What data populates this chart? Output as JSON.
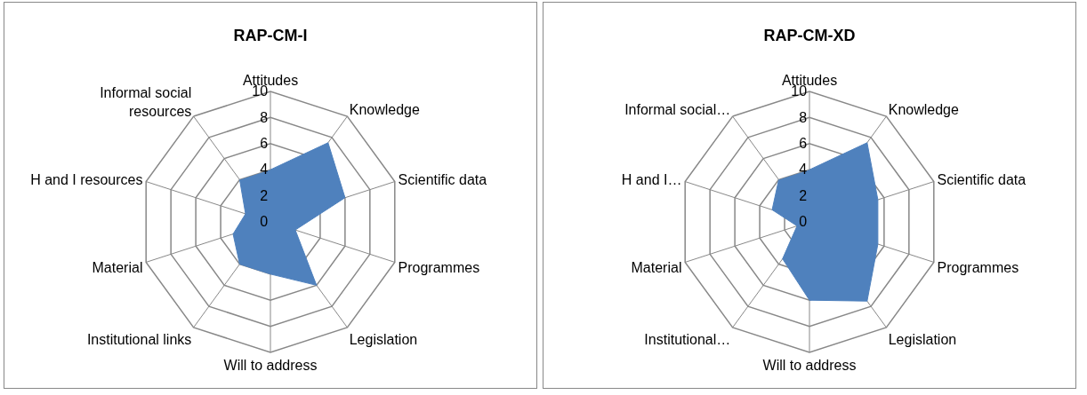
{
  "chart_data": [
    {
      "type": "radar",
      "title": "RAP-CM-I",
      "categories": [
        "Attitudes",
        "Knowledge",
        "Scientific data",
        "Programmes",
        "Legislation",
        "Will to address",
        "Institutional links",
        "Material",
        "H and I resources",
        "Informal social resources"
      ],
      "series": [
        {
          "color": "#4f81bd",
          "values": [
            4,
            7.5,
            6,
            2,
            6,
            4,
            4,
            3,
            2,
            4
          ]
        }
      ],
      "ylim": [
        0,
        10
      ],
      "yticks": [
        0,
        2,
        4,
        6,
        8,
        10
      ],
      "grid": true,
      "legend": false,
      "marker": "none"
    },
    {
      "type": "radar",
      "title": "RAP-CM-XD",
      "categories": [
        "Attitudes",
        "Knowledge",
        "Scientific data",
        "Programmes",
        "Legislation",
        "Will to address",
        "Institutional…",
        "Material",
        "H and I…",
        "Informal social…"
      ],
      "series": [
        {
          "color": "#4f81bd",
          "values": [
            4,
            7.5,
            5.5,
            5.5,
            7.5,
            6,
            3.5,
            1,
            3,
            4
          ]
        }
      ],
      "ylim": [
        0,
        10
      ],
      "yticks": [
        0,
        2,
        4,
        6,
        8,
        10
      ],
      "grid": true,
      "legend": false,
      "marker": "none"
    }
  ]
}
